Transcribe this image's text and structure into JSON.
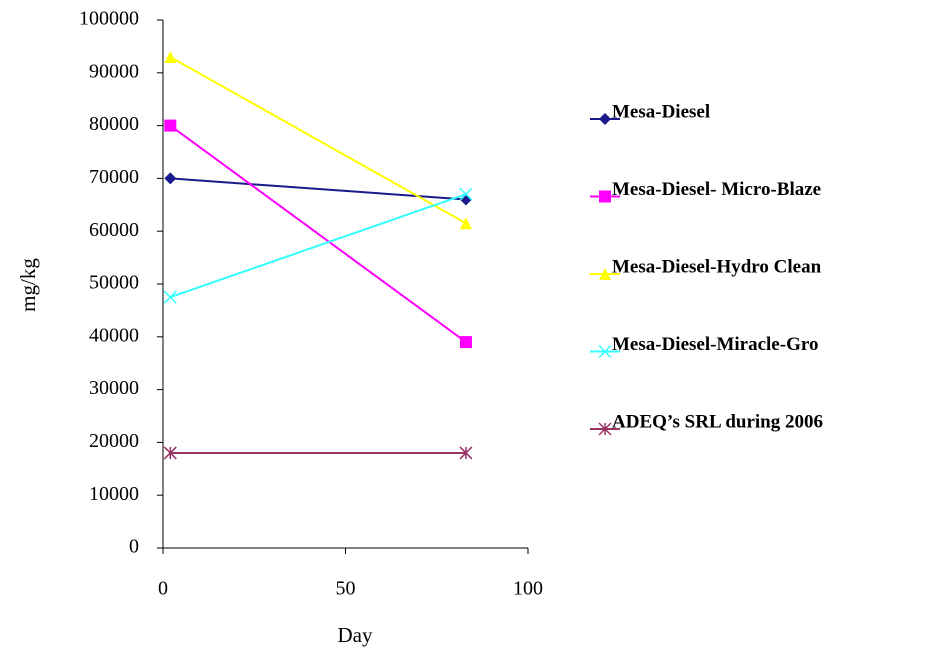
{
  "chart_data": {
    "type": "line",
    "x_label": "Day",
    "y_label": "mg/kg",
    "x": [
      2,
      83
    ],
    "series": [
      {
        "name": "Mesa-Diesel",
        "color": "#1a1a8c",
        "marker": "diamond",
        "values": [
          70000,
          66000
        ]
      },
      {
        "name": "Mesa-Diesel- Micro-Blaze",
        "color": "#ff00ff",
        "marker": "square",
        "values": [
          80000,
          39000
        ]
      },
      {
        "name": "Mesa-Diesel-Hydro Clean",
        "color": "#ffff00",
        "marker": "triangle",
        "values": [
          93000,
          61500
        ]
      },
      {
        "name": "Mesa-Diesel-Miracle-Gro",
        "color": "#33ffff",
        "marker": "x",
        "values": [
          47500,
          67000
        ]
      },
      {
        "name": "ADEQ’s SRL during 2006",
        "color": "#993366",
        "marker": "asterisk",
        "values": [
          18000,
          18000
        ]
      }
    ],
    "xlim": [
      0,
      100
    ],
    "xticks": [
      0,
      50,
      100
    ],
    "ylim": [
      0,
      100000
    ],
    "yticks": [
      0,
      10000,
      20000,
      30000,
      40000,
      50000,
      60000,
      70000,
      80000,
      90000,
      100000
    ],
    "grid": false,
    "legend": "right"
  }
}
